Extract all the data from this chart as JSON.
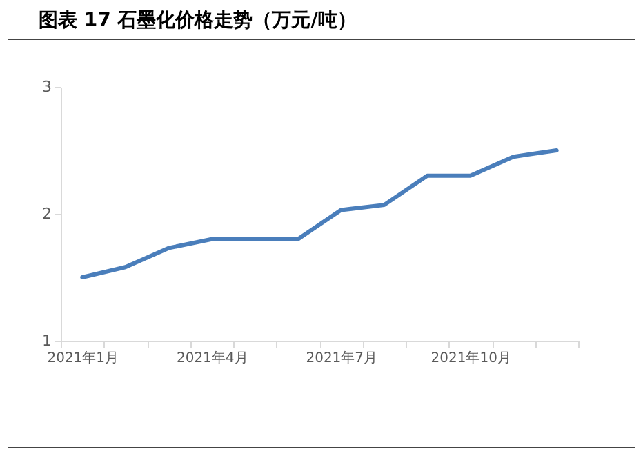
{
  "chart_data": {
    "type": "line",
    "title": "图表 17 石墨化价格走势（万元/吨）",
    "categories": [
      "2021年1月",
      null,
      null,
      "2021年4月",
      null,
      null,
      "2021年7月",
      null,
      null,
      "2021年10月",
      null,
      null
    ],
    "series": [
      {
        "color": "#4a7ebb",
        "values": [
          1.5,
          1.58,
          1.73,
          1.8,
          1.8,
          1.8,
          2.03,
          2.07,
          2.3,
          2.3,
          2.45,
          2.5
        ]
      }
    ],
    "ylim": [
      1,
      3
    ],
    "yticks": [
      1,
      2,
      3
    ],
    "grid": false,
    "legend": false,
    "marker": "none",
    "line_style": "solid"
  }
}
